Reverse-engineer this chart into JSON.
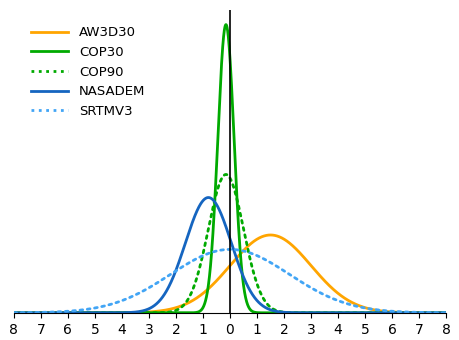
{
  "title": "",
  "xlabel": "",
  "ylabel": "",
  "xlim": [
    -8,
    8
  ],
  "ylim": [
    0,
    1.05
  ],
  "xticks": [
    -8,
    -7,
    -6,
    -5,
    -4,
    -3,
    -2,
    -1,
    0,
    1,
    2,
    3,
    4,
    5,
    6,
    7,
    8
  ],
  "series": [
    {
      "label": "AW3D30",
      "color": "#FFA500",
      "linestyle": "solid",
      "linewidth": 2.0,
      "mean": 1.5,
      "std": 1.5,
      "amplitude": 0.27
    },
    {
      "label": "COP30",
      "color": "#00AA00",
      "linestyle": "solid",
      "linewidth": 2.0,
      "mean": -0.15,
      "std": 0.3,
      "amplitude": 1.0
    },
    {
      "label": "COP90",
      "color": "#00AA00",
      "linestyle": "dotted",
      "linewidth": 2.0,
      "mean": -0.15,
      "std": 0.65,
      "amplitude": 0.48
    },
    {
      "label": "NASADEM",
      "color": "#1565C0",
      "linestyle": "solid",
      "linewidth": 2.0,
      "mean": -0.8,
      "std": 0.85,
      "amplitude": 0.4
    },
    {
      "label": "SRTMV3",
      "color": "#42A5F5",
      "linestyle": "dotted",
      "linewidth": 2.0,
      "mean": 0.0,
      "std": 2.2,
      "amplitude": 0.22
    }
  ],
  "vline_x": 0,
  "vline_color": "#000000",
  "vline_linewidth": 1.2,
  "legend_loc": "upper left",
  "legend_fontsize": 9.5,
  "background_color": "#FFFFFF",
  "figsize": [
    4.6,
    3.4
  ],
  "dpi": 100
}
